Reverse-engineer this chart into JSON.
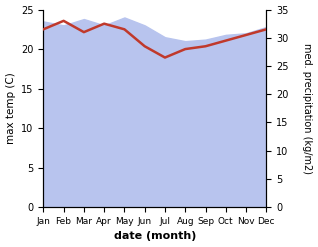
{
  "months": [
    "Jan",
    "Feb",
    "Mar",
    "Apr",
    "May",
    "Jun",
    "Jul",
    "Aug",
    "Sep",
    "Oct",
    "Nov",
    "Dec"
  ],
  "max_temp": [
    23.5,
    23.0,
    23.8,
    23.0,
    24.0,
    23.0,
    21.5,
    21.0,
    21.2,
    21.8,
    22.0,
    22.8
  ],
  "precipitation": [
    31.5,
    33.0,
    31.0,
    32.5,
    31.5,
    28.5,
    26.5,
    28.0,
    28.5,
    29.5,
    30.5,
    31.5
  ],
  "temp_fill_color": "#b8c4ee",
  "precip_line_color": "#c0392b",
  "left_ylabel": "max temp (C)",
  "right_ylabel": "med. precipitation (kg/m2)",
  "xlabel": "date (month)",
  "left_ylim": [
    0,
    25
  ],
  "right_ylim": [
    0,
    35
  ],
  "left_yticks": [
    0,
    5,
    10,
    15,
    20,
    25
  ],
  "right_yticks": [
    0,
    5,
    10,
    15,
    20,
    25,
    30,
    35
  ],
  "background_color": "#ffffff"
}
